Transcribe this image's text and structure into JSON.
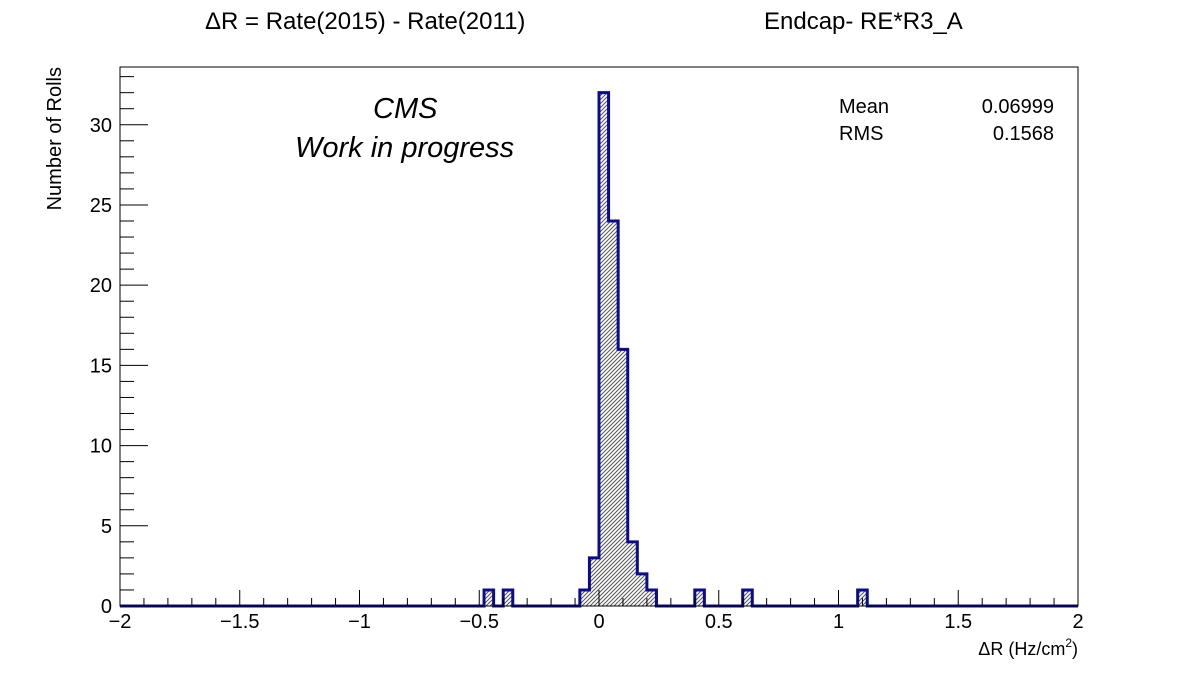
{
  "title_left": "ΔR = Rate(2015) - Rate(2011)",
  "title_right": "Endcap- RE*R3_A",
  "label_cms": "CMS",
  "label_wip": "Work in progress",
  "stats": {
    "mean_label": "Mean",
    "mean_value": "0.06999",
    "rms_label": "RMS",
    "rms_value": "0.1568"
  },
  "colors": {
    "line": "#0b0b8f",
    "fill_hatch": "#555555"
  },
  "chart_data": {
    "type": "histogram",
    "xlabel_main": "ΔR (Hz/cm",
    "xlabel_sup": "2",
    "xlabel_tail": ")",
    "ylabel": "Number of Rolls",
    "xlim": [
      -2,
      2
    ],
    "ylim": [
      0,
      33.6
    ],
    "bin_width": 0.04,
    "x_ticks": [
      -2,
      -1.5,
      -1,
      -0.5,
      0,
      0.5,
      1,
      1.5,
      2
    ],
    "x_tick_labels": [
      "−2",
      "−1.5",
      "−1",
      "−0.5",
      "0",
      "0.5",
      "1",
      "1.5",
      "2"
    ],
    "y_ticks": [
      0,
      5,
      10,
      15,
      20,
      25,
      30
    ],
    "y_tick_labels": [
      "0",
      "5",
      "10",
      "15",
      "20",
      "25",
      "30"
    ],
    "bins": [
      {
        "x": -0.48,
        "count": 1
      },
      {
        "x": -0.4,
        "count": 1
      },
      {
        "x": -0.08,
        "count": 1
      },
      {
        "x": -0.04,
        "count": 3
      },
      {
        "x": 0.0,
        "count": 32
      },
      {
        "x": 0.04,
        "count": 24
      },
      {
        "x": 0.08,
        "count": 16
      },
      {
        "x": 0.12,
        "count": 4
      },
      {
        "x": 0.16,
        "count": 2
      },
      {
        "x": 0.2,
        "count": 1
      },
      {
        "x": 0.4,
        "count": 1
      },
      {
        "x": 0.6,
        "count": 1
      },
      {
        "x": 1.08,
        "count": 1
      }
    ]
  }
}
